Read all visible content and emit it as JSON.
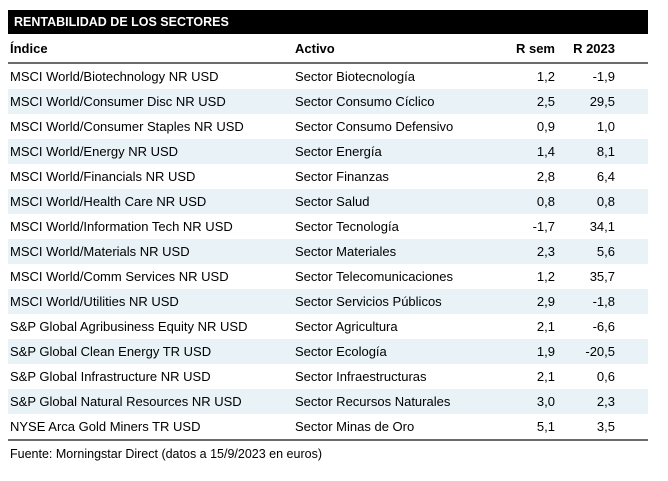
{
  "title": "RENTABILIDAD DE LOS SECTORES",
  "table": {
    "columns": [
      "Índice",
      "Activo",
      "R sem",
      "R 2023"
    ],
    "rows": [
      {
        "indice": "MSCI World/Biotechnology NR USD",
        "activo": "Sector Biotecnología",
        "r_sem": "1,2",
        "r_2023": "-1,9"
      },
      {
        "indice": "MSCI World/Consumer Disc NR USD",
        "activo": "Sector Consumo Cíclico",
        "r_sem": "2,5",
        "r_2023": "29,5"
      },
      {
        "indice": "MSCI World/Consumer Staples NR USD",
        "activo": "Sector Consumo Defensivo",
        "r_sem": "0,9",
        "r_2023": "1,0"
      },
      {
        "indice": "MSCI World/Energy NR USD",
        "activo": "Sector Energía",
        "r_sem": "1,4",
        "r_2023": "8,1"
      },
      {
        "indice": "MSCI World/Financials NR USD",
        "activo": "Sector Finanzas",
        "r_sem": "2,8",
        "r_2023": "6,4"
      },
      {
        "indice": "MSCI World/Health Care NR USD",
        "activo": "Sector Salud",
        "r_sem": "0,8",
        "r_2023": "0,8"
      },
      {
        "indice": "MSCI World/Information Tech NR USD",
        "activo": "Sector Tecnología",
        "r_sem": "-1,7",
        "r_2023": "34,1"
      },
      {
        "indice": "MSCI World/Materials NR USD",
        "activo": "Sector Materiales",
        "r_sem": "2,3",
        "r_2023": "5,6"
      },
      {
        "indice": "MSCI World/Comm Services NR USD",
        "activo": "Sector Telecomunicaciones",
        "r_sem": "1,2",
        "r_2023": "35,7"
      },
      {
        "indice": "MSCI World/Utilities NR USD",
        "activo": "Sector Servicios Públicos",
        "r_sem": "2,9",
        "r_2023": "-1,8"
      },
      {
        "indice": "S&P Global Agribusiness Equity NR USD",
        "activo": "Sector Agricultura",
        "r_sem": "2,1",
        "r_2023": "-6,6"
      },
      {
        "indice": "S&P Global Clean Energy TR USD",
        "activo": "Sector Ecología",
        "r_sem": "1,9",
        "r_2023": "-20,5"
      },
      {
        "indice": "S&P Global Infrastructure NR USD",
        "activo": "Sector Infraestructuras",
        "r_sem": "2,1",
        "r_2023": "0,6"
      },
      {
        "indice": "S&P Global Natural Resources NR USD",
        "activo": "Sector Recursos Naturales",
        "r_sem": "3,0",
        "r_2023": "2,3"
      },
      {
        "indice": "NYSE Arca Gold Miners TR USD",
        "activo": "Sector Minas de Oro",
        "r_sem": "5,1",
        "r_2023": "3,5"
      }
    ]
  },
  "footer": "Fuente: Morningstar Direct (datos a 15/9/2023 en euros)",
  "colors": {
    "header_bar_bg": "#000000",
    "header_bar_text": "#ffffff",
    "row_alt_bg": "#e8f2f7",
    "rule": "#6b6b6b",
    "text": "#000000"
  },
  "chart_data": {
    "type": "table",
    "title": "RENTABILIDAD DE LOS SECTORES",
    "columns": [
      "Índice",
      "Activo",
      "R sem",
      "R 2023"
    ],
    "rows": [
      [
        "MSCI World/Biotechnology NR USD",
        "Sector Biotecnología",
        1.2,
        -1.9
      ],
      [
        "MSCI World/Consumer Disc NR USD",
        "Sector Consumo Cíclico",
        2.5,
        29.5
      ],
      [
        "MSCI World/Consumer Staples NR USD",
        "Sector Consumo Defensivo",
        0.9,
        1.0
      ],
      [
        "MSCI World/Energy NR USD",
        "Sector Energía",
        1.4,
        8.1
      ],
      [
        "MSCI World/Financials NR USD",
        "Sector Finanzas",
        2.8,
        6.4
      ],
      [
        "MSCI World/Health Care NR USD",
        "Sector Salud",
        0.8,
        0.8
      ],
      [
        "MSCI World/Information Tech NR USD",
        "Sector Tecnología",
        -1.7,
        34.1
      ],
      [
        "MSCI World/Materials NR USD",
        "Sector Materiales",
        2.3,
        5.6
      ],
      [
        "MSCI World/Comm Services NR USD",
        "Sector Telecomunicaciones",
        1.2,
        35.7
      ],
      [
        "MSCI World/Utilities NR USD",
        "Sector Servicios Públicos",
        2.9,
        -1.8
      ],
      [
        "S&P Global Agribusiness Equity NR USD",
        "Sector Agricultura",
        2.1,
        -6.6
      ],
      [
        "S&P Global Clean Energy TR USD",
        "Sector Ecología",
        1.9,
        -20.5
      ],
      [
        "S&P Global Infrastructure NR USD",
        "Sector Infraestructuras",
        2.1,
        0.6
      ],
      [
        "S&P Global Natural Resources NR USD",
        "Sector Recursos Naturales",
        3.0,
        2.3
      ],
      [
        "NYSE Arca Gold Miners TR USD",
        "Sector Minas de Oro",
        5.1,
        3.5
      ]
    ],
    "number_format": "comma-decimal (es-ES)",
    "source_note": "Fuente: Morningstar Direct (datos a 15/9/2023 en euros)"
  }
}
